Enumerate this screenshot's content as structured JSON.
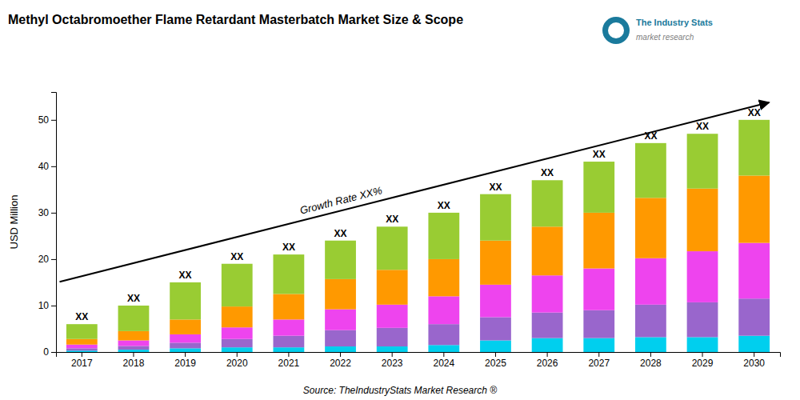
{
  "chart_data": {
    "type": "bar",
    "stacked": true,
    "grid": false,
    "title": "Methyl Octabromoether Flame Retardant Masterbatch Market Size & Scope",
    "ylabel": "USD Million",
    "categories": [
      "2017",
      "2018",
      "2019",
      "2020",
      "2021",
      "2022",
      "2023",
      "2024",
      "2025",
      "2026",
      "2027",
      "2028",
      "2029",
      "2030"
    ],
    "series": [
      {
        "color": "#00CFEE",
        "values": [
          0.3,
          0.5,
          0.8,
          1.0,
          1.0,
          1.2,
          1.2,
          1.5,
          2.5,
          3.0,
          3.0,
          3.2,
          3.2,
          3.5
        ]
      },
      {
        "color": "#9966CC",
        "values": [
          0.5,
          0.8,
          1.2,
          1.8,
          2.5,
          3.5,
          4.0,
          4.5,
          5.0,
          5.5,
          6.0,
          7.0,
          7.5,
          8.0
        ]
      },
      {
        "color": "#EE44EE",
        "values": [
          0.8,
          1.2,
          1.8,
          2.5,
          3.5,
          4.5,
          5.0,
          6.0,
          7.0,
          8.0,
          9.0,
          10.0,
          11.0,
          12.0
        ]
      },
      {
        "color": "#FF9900",
        "values": [
          1.2,
          2.0,
          3.2,
          4.5,
          5.5,
          6.5,
          7.5,
          8.0,
          9.5,
          10.5,
          12.0,
          13.0,
          13.5,
          14.5
        ]
      },
      {
        "color": "#99CC33",
        "values": [
          3.2,
          5.5,
          8.0,
          9.2,
          8.5,
          8.3,
          9.3,
          10.0,
          10.0,
          10.0,
          11.0,
          11.8,
          11.8,
          12.0
        ]
      }
    ],
    "ylim": [
      0,
      56
    ],
    "yticks": [
      0,
      10,
      20,
      30,
      40,
      50
    ],
    "stack_labels": [
      "XX",
      "XX",
      "XX",
      "XX",
      "XX",
      "XX",
      "XX",
      "XX",
      "XX",
      "XX",
      "XX",
      "XX",
      "XX",
      "XX"
    ],
    "annotations": [
      {
        "text": "Growth Rate XX%",
        "kind": "arrow"
      },
      {
        "text": "Source: TheIndustryStats Market Research ®",
        "kind": "source"
      },
      {
        "text": "The Industry Stats",
        "kind": "logo",
        "color": "#1a7a9c"
      },
      {
        "text": "market research",
        "kind": "logo-sub",
        "color": "#808080"
      }
    ]
  }
}
